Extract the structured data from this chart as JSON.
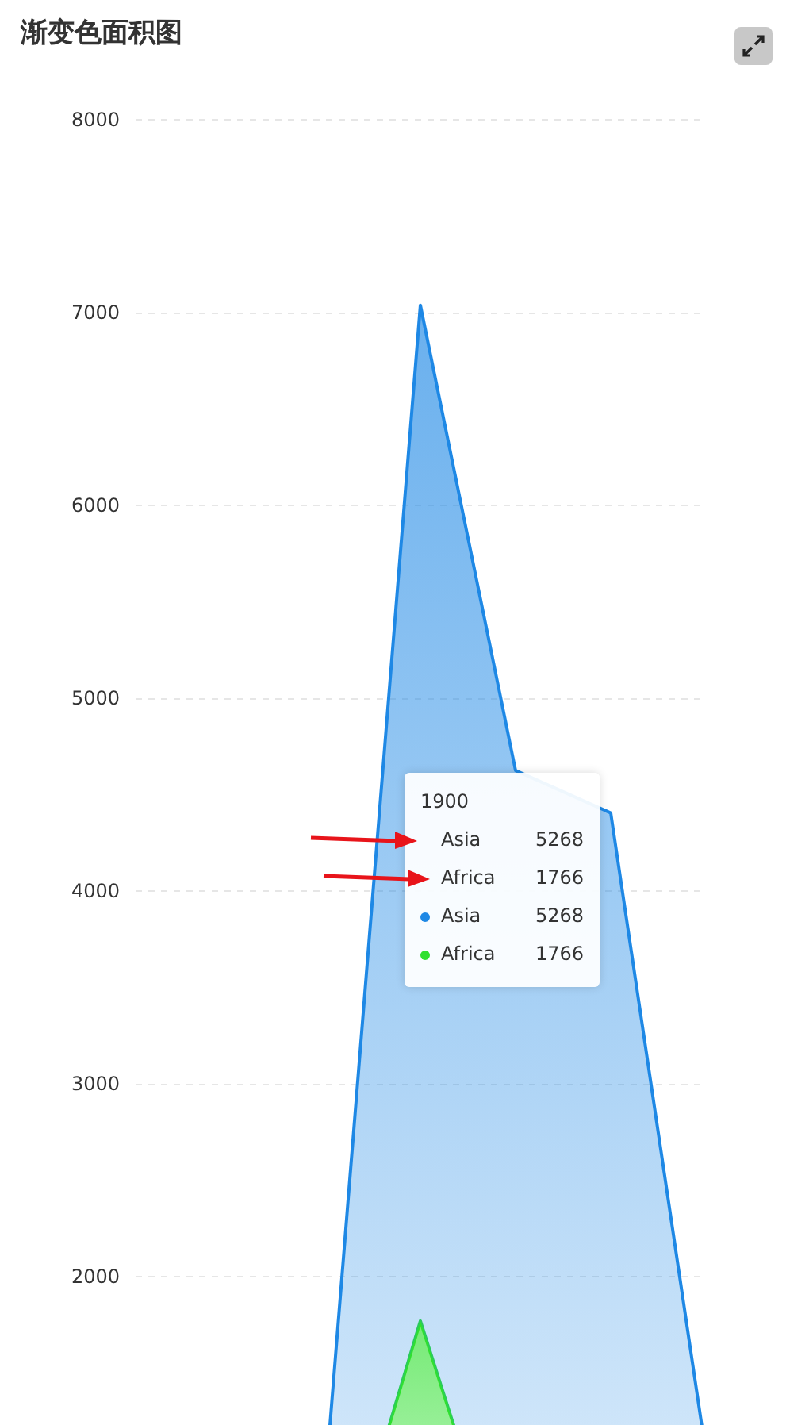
{
  "chart_data": {
    "type": "area",
    "title": "渐变色面积图",
    "stacked": true,
    "categories": [
      null,
      null,
      null,
      "1900",
      null,
      null,
      null
    ],
    "series": [
      {
        "name": "Africa",
        "color": "#2fe02f",
        "values": [
          106,
          107,
          111,
          1766,
          221,
          767,
          133
        ]
      },
      {
        "name": "Asia",
        "color": "#1e88e5",
        "values": [
          502,
          635,
          809,
          5268,
          4400,
          3634,
          947
        ]
      }
    ],
    "ylim": [
      0,
      8000
    ],
    "yticks": [
      2000,
      3000,
      4000,
      5000,
      6000,
      7000,
      8000
    ],
    "annotations": [
      "5268",
      "1766"
    ],
    "grid": "y",
    "tick_labels": "y",
    "legend": "right"
  }
}
